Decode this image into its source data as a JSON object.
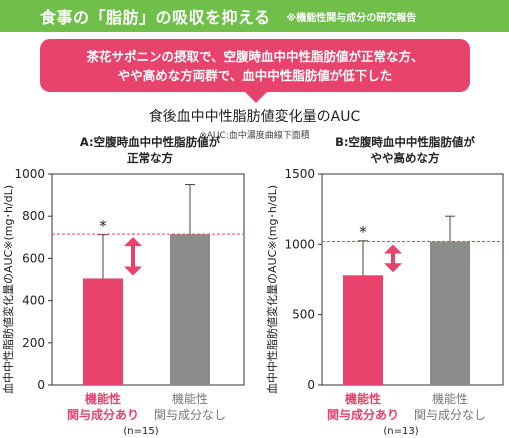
{
  "header": {
    "title": "食事の「脂肪」の吸収を抑える",
    "note": "※機能性関与成分の研究報告"
  },
  "callout": {
    "line1": "茶花サポニンの摂取で、空腹時血中中性脂肪値が正常な方、",
    "line2": "やや高めな方両群で、血中中性脂肪値が低下した"
  },
  "figure": {
    "title": "食後血中中性脂肪値変化量のAUC",
    "note": "※AUC:血中濃度曲線下面積"
  },
  "colors": {
    "active": "#e8436c",
    "control": "#8c8c8c",
    "arrow": "#e8436c",
    "reference_line": "#e8436c",
    "banner": "#6fbf4a"
  },
  "chart_data": [
    {
      "type": "bar",
      "title_line1": "A:空腹時血中中性脂肪値が",
      "title_line2": "正常な方",
      "ylabel": "血中中性脂肪値変化量のAUC※(mg･h/dL)",
      "ylim": [
        0,
        1000
      ],
      "yticks": [
        0,
        200,
        400,
        600,
        800,
        1000
      ],
      "categories": [
        {
          "line1": "機能性",
          "line2": "関与成分あり",
          "highlight": true
        },
        {
          "line1": "機能性",
          "line2": "関与成分なし",
          "highlight": false
        }
      ],
      "values": [
        505,
        715
      ],
      "error_upper": [
        712,
        950
      ],
      "reference_value": 715,
      "significance": [
        "*",
        ""
      ],
      "n_label": "(n=15)"
    },
    {
      "type": "bar",
      "title_line1": "B:空腹時血中中性脂肪値が",
      "title_line2": "やや高めな方",
      "ylabel": "血中中性脂肪値変化量のAUC※(mg･h/dL)",
      "ylim": [
        0,
        1500
      ],
      "yticks": [
        0,
        500,
        1000,
        1500
      ],
      "categories": [
        {
          "line1": "機能性",
          "line2": "関与成分あり",
          "highlight": true
        },
        {
          "line1": "機能性",
          "line2": "関与成分なし",
          "highlight": false
        }
      ],
      "values": [
        780,
        1020
      ],
      "error_upper": [
        1025,
        1200
      ],
      "reference_value": 1020,
      "significance": [
        "*",
        ""
      ],
      "n_label": "(n=13)"
    }
  ]
}
